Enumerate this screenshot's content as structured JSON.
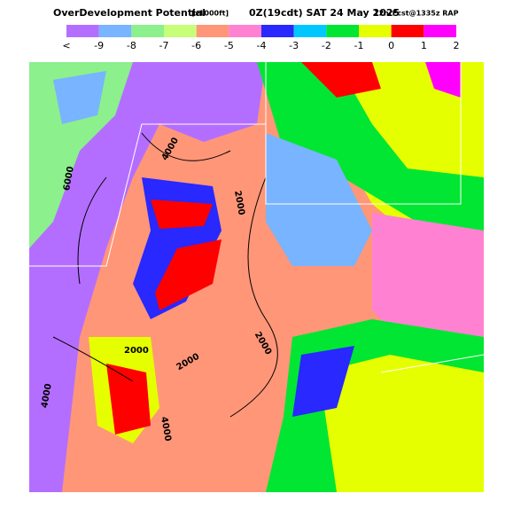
{
  "header": {
    "title": "OverDevelopment Potential",
    "units": "[x1000ft]",
    "valid": "0Z(19cdt) SAT 24 May 2025",
    "forecast": "12hrFcst@1335z RAP"
  },
  "colorbar": {
    "labels": [
      "<",
      -9,
      -8,
      -7,
      -6,
      -5,
      -4,
      -3,
      -2,
      -1,
      0,
      1,
      2
    ],
    "colors": [
      "#b46eff",
      "#78b4ff",
      "#8cf08c",
      "#c8ff78",
      "#ff9678",
      "#ff82d2",
      "#2828ff",
      "#00c8ff",
      "#00e632",
      "#e6ff00",
      "#ff0000",
      "#ff00ff"
    ]
  },
  "contour_labels": [
    "6000",
    "4000",
    "2000",
    "2000",
    "2000",
    "2000",
    "4000",
    "4000"
  ]
}
